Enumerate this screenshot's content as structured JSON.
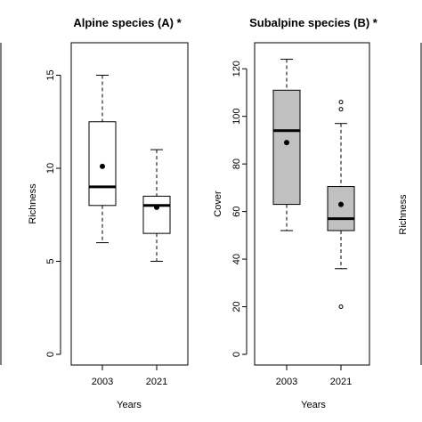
{
  "chart_data": [
    {
      "type": "box",
      "title": "Alpine species (A) *",
      "xlabel": "Years",
      "ylabel": "Richness",
      "categories": [
        "2003",
        "2021"
      ],
      "ylim": [
        0,
        16.5
      ],
      "yticks": [
        0,
        5,
        10,
        15
      ],
      "boxes": [
        {
          "category": "2003",
          "whisker_low": 6,
          "q1": 8,
          "median": 9,
          "q3": 12.5,
          "whisker_high": 15,
          "mean": 10.1,
          "fill": "#ffffff",
          "outliers": []
        },
        {
          "category": "2021",
          "whisker_low": 5,
          "q1": 6.5,
          "median": 8,
          "q3": 8.5,
          "whisker_high": 11,
          "mean": 7.9,
          "fill": "#ffffff",
          "outliers": []
        }
      ]
    },
    {
      "type": "box",
      "title": "Subalpine species (B) *",
      "xlabel": "Years",
      "ylabel": "Cover",
      "categories": [
        "2003",
        "2021"
      ],
      "ylim": [
        0,
        125
      ],
      "yticks": [
        0,
        20,
        40,
        60,
        80,
        100,
        120
      ],
      "boxes": [
        {
          "category": "2003",
          "whisker_low": 52,
          "q1": 63,
          "median": 94,
          "q3": 111,
          "whisker_high": 124,
          "mean": 89,
          "fill": "#c0c0c0",
          "outliers": []
        },
        {
          "category": "2021",
          "whisker_low": 36,
          "q1": 52,
          "median": 57,
          "q3": 70.5,
          "whisker_high": 97,
          "mean": 63,
          "fill": "#c0c0c0",
          "outliers": [
            20,
            103,
            106
          ]
        }
      ]
    },
    {
      "type": "box",
      "title": "",
      "xlabel": "",
      "ylabel": "Richness",
      "categories": [],
      "boxes": []
    }
  ]
}
